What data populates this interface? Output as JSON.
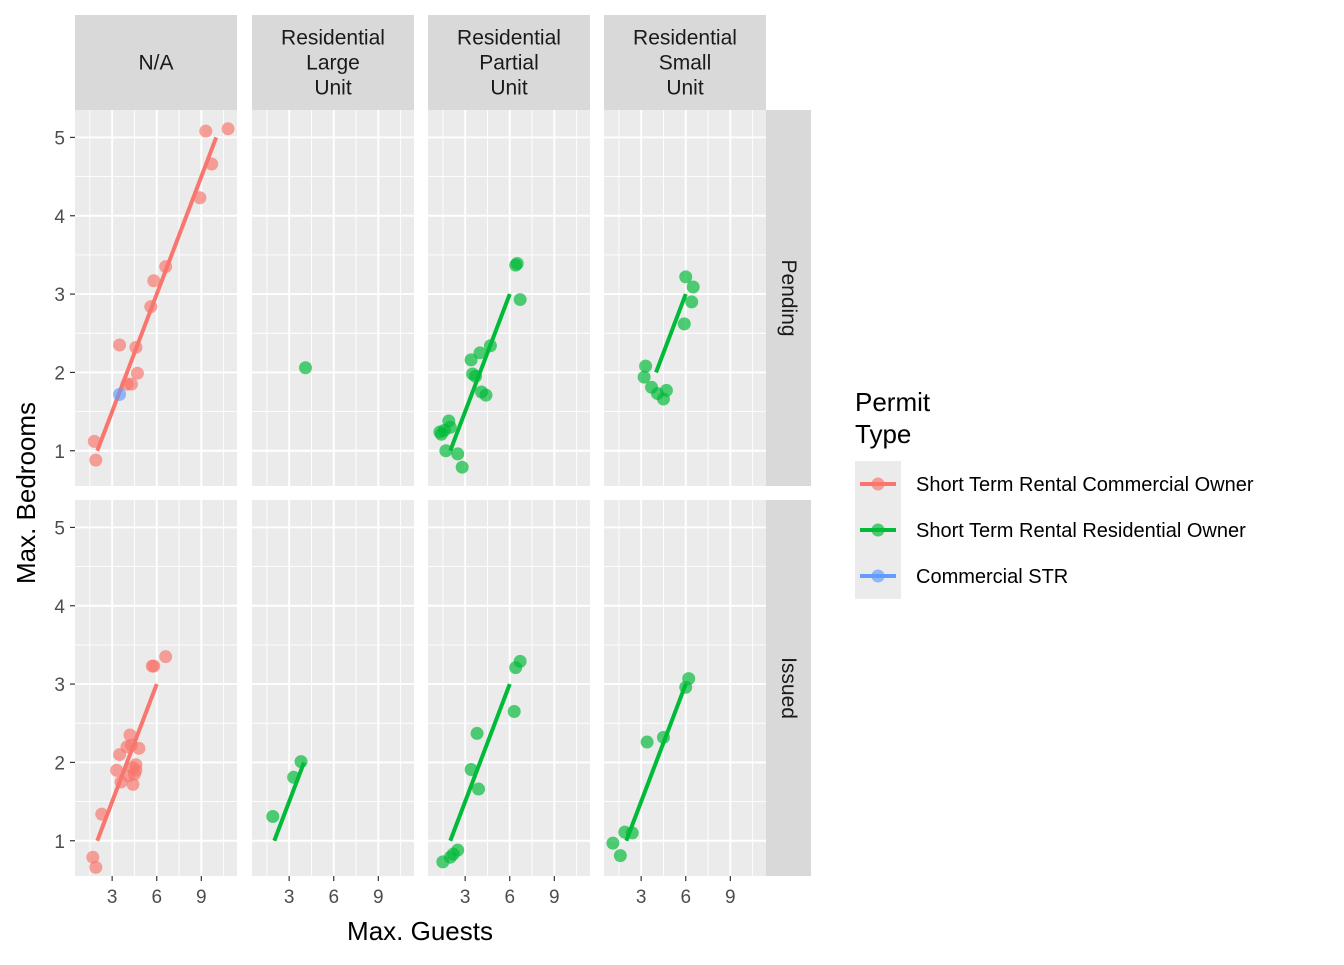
{
  "chart_data": {
    "type": "scatter",
    "xlabel": "Max. Guests",
    "ylabel": "Max. Bedrooms",
    "xlim": [
      0.5,
      11.4
    ],
    "ylim": [
      0.55,
      5.35
    ],
    "x_ticks": [
      3,
      6,
      9
    ],
    "y_ticks": [
      1,
      2,
      3,
      4,
      5
    ],
    "grid": true,
    "facet_columns": [
      "N/A",
      "Residential\nLarge\nUnit",
      "Residential\nPartial\nUnit",
      "Residential\nSmall\nUnit"
    ],
    "facet_rows": [
      "Pending",
      "Issued"
    ],
    "legend": {
      "title": "Permit\nType",
      "position": "right",
      "entries": [
        {
          "label": "Short Term Rental Commercial Owner",
          "color": "#F8766D"
        },
        {
          "label": "Short Term Rental Residential Owner",
          "color": "#00BA38"
        },
        {
          "label": "Commercial STR",
          "color": "#619CFF"
        }
      ]
    },
    "panels": [
      {
        "row": 0,
        "col": 0,
        "points": [
          {
            "x": 1.8,
            "y": 1.12,
            "series": 0
          },
          {
            "x": 1.9,
            "y": 0.88,
            "series": 0
          },
          {
            "x": 3.5,
            "y": 2.35,
            "series": 0
          },
          {
            "x": 3.5,
            "y": 1.72,
            "series": 2
          },
          {
            "x": 4.0,
            "y": 1.85,
            "series": 0
          },
          {
            "x": 4.3,
            "y": 1.85,
            "series": 0
          },
          {
            "x": 4.6,
            "y": 2.32,
            "series": 0
          },
          {
            "x": 4.7,
            "y": 1.99,
            "series": 0
          },
          {
            "x": 5.6,
            "y": 2.84,
            "series": 0
          },
          {
            "x": 5.8,
            "y": 3.17,
            "series": 0
          },
          {
            "x": 6.6,
            "y": 3.35,
            "series": 0
          },
          {
            "x": 8.9,
            "y": 4.23,
            "series": 0
          },
          {
            "x": 9.3,
            "y": 5.08,
            "series": 0
          },
          {
            "x": 9.7,
            "y": 4.66,
            "series": 0
          },
          {
            "x": 10.8,
            "y": 5.11,
            "series": 0
          }
        ],
        "fits": [
          {
            "series": 0,
            "x": [
              2.0,
              10.0
            ],
            "y": [
              1.0,
              5.0
            ]
          }
        ]
      },
      {
        "row": 0,
        "col": 1,
        "points": [
          {
            "x": 4.1,
            "y": 2.06,
            "series": 1
          }
        ],
        "fits": []
      },
      {
        "row": 0,
        "col": 2,
        "points": [
          {
            "x": 1.3,
            "y": 1.24,
            "series": 1
          },
          {
            "x": 1.4,
            "y": 1.21,
            "series": 1
          },
          {
            "x": 1.6,
            "y": 1.26,
            "series": 1
          },
          {
            "x": 1.7,
            "y": 1.0,
            "series": 1
          },
          {
            "x": 1.9,
            "y": 1.38,
            "series": 1
          },
          {
            "x": 2.0,
            "y": 1.3,
            "series": 1
          },
          {
            "x": 2.5,
            "y": 0.96,
            "series": 1
          },
          {
            "x": 2.8,
            "y": 0.79,
            "series": 1
          },
          {
            "x": 3.4,
            "y": 2.16,
            "series": 1
          },
          {
            "x": 3.5,
            "y": 1.98,
            "series": 1
          },
          {
            "x": 3.7,
            "y": 1.95,
            "series": 1
          },
          {
            "x": 4.0,
            "y": 2.25,
            "series": 1
          },
          {
            "x": 4.1,
            "y": 1.75,
            "series": 1
          },
          {
            "x": 4.4,
            "y": 1.71,
            "series": 1
          },
          {
            "x": 4.7,
            "y": 2.34,
            "series": 1
          },
          {
            "x": 6.4,
            "y": 3.37,
            "series": 1
          },
          {
            "x": 6.5,
            "y": 3.39,
            "series": 1
          },
          {
            "x": 6.7,
            "y": 2.93,
            "series": 1
          }
        ],
        "fits": [
          {
            "series": 1,
            "x": [
              2.0,
              6.0
            ],
            "y": [
              1.0,
              3.0
            ]
          }
        ]
      },
      {
        "row": 0,
        "col": 3,
        "points": [
          {
            "x": 3.2,
            "y": 1.94,
            "series": 1
          },
          {
            "x": 3.3,
            "y": 2.08,
            "series": 1
          },
          {
            "x": 3.7,
            "y": 1.81,
            "series": 1
          },
          {
            "x": 4.1,
            "y": 1.73,
            "series": 1
          },
          {
            "x": 4.5,
            "y": 1.66,
            "series": 1
          },
          {
            "x": 4.7,
            "y": 1.77,
            "series": 1
          },
          {
            "x": 5.9,
            "y": 2.62,
            "series": 1
          },
          {
            "x": 6.0,
            "y": 3.22,
            "series": 1
          },
          {
            "x": 6.4,
            "y": 2.9,
            "series": 1
          },
          {
            "x": 6.5,
            "y": 3.09,
            "series": 1
          }
        ],
        "fits": [
          {
            "series": 1,
            "x": [
              4.0,
              6.0
            ],
            "y": [
              2.0,
              3.0
            ]
          }
        ]
      },
      {
        "row": 1,
        "col": 0,
        "points": [
          {
            "x": 1.7,
            "y": 0.79,
            "series": 0
          },
          {
            "x": 1.9,
            "y": 0.66,
            "series": 0
          },
          {
            "x": 2.3,
            "y": 1.34,
            "series": 0
          },
          {
            "x": 3.3,
            "y": 1.9,
            "series": 0
          },
          {
            "x": 3.5,
            "y": 2.1,
            "series": 0
          },
          {
            "x": 3.6,
            "y": 1.75,
            "series": 0
          },
          {
            "x": 4.0,
            "y": 2.2,
            "series": 0
          },
          {
            "x": 4.1,
            "y": 1.83,
            "series": 0
          },
          {
            "x": 4.2,
            "y": 2.35,
            "series": 0
          },
          {
            "x": 4.3,
            "y": 2.22,
            "series": 0
          },
          {
            "x": 4.4,
            "y": 1.72,
            "series": 0
          },
          {
            "x": 4.4,
            "y": 1.93,
            "series": 0
          },
          {
            "x": 4.5,
            "y": 1.85,
            "series": 0
          },
          {
            "x": 4.6,
            "y": 1.9,
            "series": 0
          },
          {
            "x": 4.6,
            "y": 1.97,
            "series": 0
          },
          {
            "x": 4.8,
            "y": 2.18,
            "series": 0
          },
          {
            "x": 5.7,
            "y": 3.23,
            "series": 0
          },
          {
            "x": 5.8,
            "y": 3.23,
            "series": 0
          },
          {
            "x": 6.6,
            "y": 3.35,
            "series": 0
          }
        ],
        "fits": [
          {
            "series": 0,
            "x": [
              2.0,
              6.0
            ],
            "y": [
              1.0,
              3.0
            ]
          }
        ]
      },
      {
        "row": 1,
        "col": 1,
        "points": [
          {
            "x": 1.9,
            "y": 1.31,
            "series": 1
          },
          {
            "x": 3.3,
            "y": 1.81,
            "series": 1
          },
          {
            "x": 3.8,
            "y": 2.01,
            "series": 1
          }
        ],
        "fits": [
          {
            "series": 1,
            "x": [
              2.0,
              4.0
            ],
            "y": [
              1.0,
              2.0
            ]
          }
        ]
      },
      {
        "row": 1,
        "col": 2,
        "points": [
          {
            "x": 1.5,
            "y": 0.73,
            "series": 1
          },
          {
            "x": 2.0,
            "y": 0.79,
            "series": 1
          },
          {
            "x": 2.2,
            "y": 0.83,
            "series": 1
          },
          {
            "x": 2.5,
            "y": 0.88,
            "series": 1
          },
          {
            "x": 3.4,
            "y": 1.91,
            "series": 1
          },
          {
            "x": 3.8,
            "y": 2.37,
            "series": 1
          },
          {
            "x": 3.9,
            "y": 1.66,
            "series": 1
          },
          {
            "x": 6.3,
            "y": 2.65,
            "series": 1
          },
          {
            "x": 6.4,
            "y": 3.21,
            "series": 1
          },
          {
            "x": 6.7,
            "y": 3.29,
            "series": 1
          }
        ],
        "fits": [
          {
            "series": 1,
            "x": [
              2.0,
              6.0
            ],
            "y": [
              1.0,
              3.0
            ]
          }
        ]
      },
      {
        "row": 1,
        "col": 3,
        "points": [
          {
            "x": 1.1,
            "y": 0.97,
            "series": 1
          },
          {
            "x": 1.6,
            "y": 0.81,
            "series": 1
          },
          {
            "x": 1.9,
            "y": 1.11,
            "series": 1
          },
          {
            "x": 2.4,
            "y": 1.1,
            "series": 1
          },
          {
            "x": 3.4,
            "y": 2.26,
            "series": 1
          },
          {
            "x": 4.5,
            "y": 2.32,
            "series": 1
          },
          {
            "x": 6.0,
            "y": 2.96,
            "series": 1
          },
          {
            "x": 6.2,
            "y": 3.07,
            "series": 1
          }
        ],
        "fits": [
          {
            "series": 1,
            "x": [
              2.0,
              6.0
            ],
            "y": [
              1.0,
              3.0
            ]
          }
        ]
      }
    ]
  }
}
